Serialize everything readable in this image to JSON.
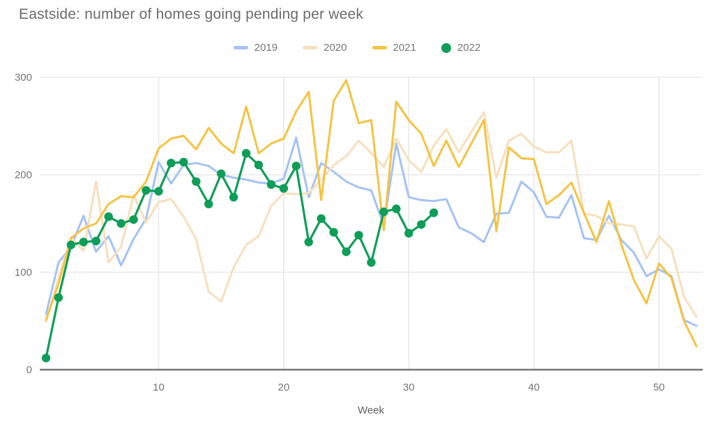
{
  "chart_data": {
    "type": "line",
    "title": "Eastside: number of homes going pending per week",
    "xlabel": "Week",
    "ylabel": "",
    "xlim": [
      1,
      53
    ],
    "ylim": [
      0,
      300
    ],
    "x_ticks": [
      10,
      20,
      30,
      40,
      50
    ],
    "y_ticks": [
      0,
      100,
      200,
      300
    ],
    "grid": true,
    "legend_position": "top",
    "x_unit": "week number",
    "series": [
      {
        "name": "2019",
        "color": "#A4C2F4",
        "marker": false,
        "start_week": 1,
        "values": [
          57,
          110,
          126,
          158,
          121,
          137,
          107,
          134,
          155,
          213,
          191,
          210,
          212,
          209,
          200,
          197,
          195,
          192,
          191,
          196,
          238,
          177,
          212,
          203,
          193,
          187,
          184,
          148,
          232,
          177,
          174,
          173,
          175,
          146,
          140,
          131,
          160,
          161,
          193,
          182,
          157,
          156,
          179,
          135,
          133,
          158,
          133,
          120,
          96,
          103,
          96,
          51,
          45
        ]
      },
      {
        "name": "2020",
        "color": "#F7DFBD",
        "marker": false,
        "start_week": 1,
        "values": [
          49,
          94,
          136,
          122,
          193,
          110,
          126,
          179,
          151,
          172,
          175,
          157,
          134,
          80,
          70,
          105,
          128,
          137,
          168,
          181,
          180,
          181,
          195,
          210,
          219,
          235,
          222,
          208,
          237,
          215,
          203,
          230,
          247,
          223,
          244,
          264,
          197,
          235,
          242,
          229,
          223,
          223,
          235,
          160,
          158,
          150,
          149,
          147,
          114,
          137,
          124,
          75,
          54
        ]
      },
      {
        "name": "2021",
        "color": "#F5C342",
        "marker": false,
        "start_week": 1,
        "values": [
          51,
          88,
          135,
          145,
          150,
          170,
          178,
          177,
          193,
          227,
          237,
          240,
          226,
          248,
          232,
          222,
          270,
          222,
          232,
          237,
          265,
          285,
          174,
          276,
          297,
          253,
          256,
          143,
          275,
          256,
          242,
          209,
          235,
          208,
          232,
          256,
          142,
          228,
          217,
          216,
          170,
          179,
          192,
          161,
          131,
          173,
          128,
          92,
          68,
          109,
          94,
          50,
          24
        ]
      },
      {
        "name": "2022",
        "color": "#0F9D58",
        "marker": true,
        "start_week": 1,
        "values": [
          12,
          74,
          128,
          131,
          132,
          157,
          150,
          154,
          184,
          183,
          212,
          213,
          193,
          170,
          201,
          177,
          222,
          210,
          190,
          186,
          209,
          131,
          155,
          141,
          121,
          138,
          110,
          162,
          165,
          140,
          149,
          161
        ]
      }
    ]
  },
  "styling": {
    "gridline_color": "#e3e3e3",
    "axis_line_color": "#757575",
    "tick_label_color": "#757575",
    "title_color": "#6b6b6b"
  }
}
